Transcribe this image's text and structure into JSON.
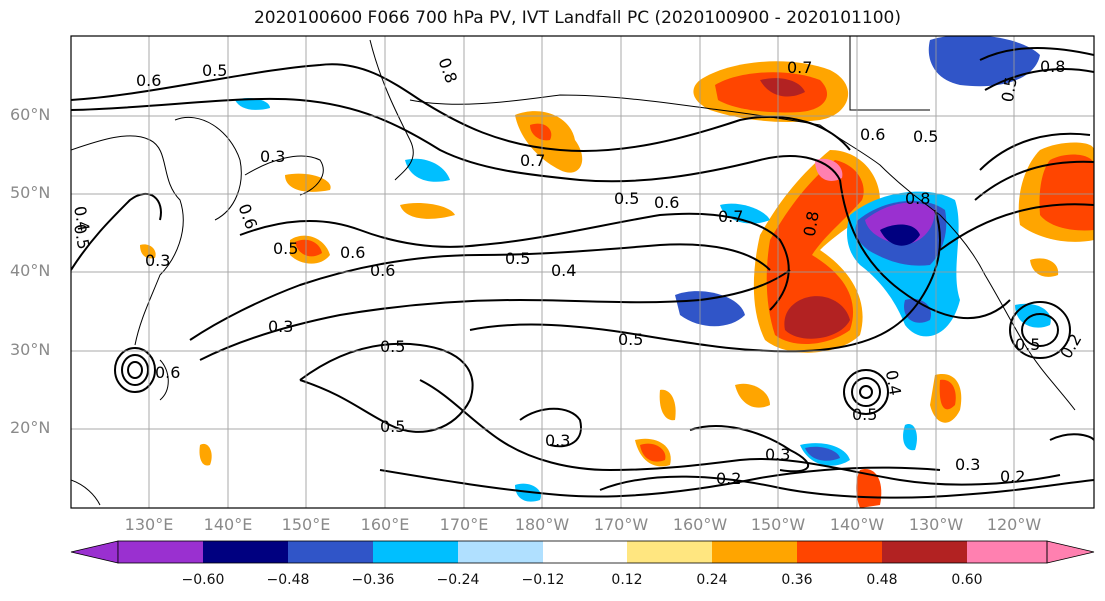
{
  "title": "2020100600 F066 700 hPa PV, IVT Landfall PC (2020100900 - 2020101100)",
  "lat_labels": [
    "60°N",
    "50°N",
    "40°N",
    "30°N",
    "20°N"
  ],
  "lon_labels": [
    "130°E",
    "140°E",
    "150°E",
    "160°E",
    "170°E",
    "180°W",
    "170°W",
    "160°W",
    "150°W",
    "140°W",
    "130°W",
    "120°W"
  ],
  "colorbar": {
    "ticks": [
      "−0.60",
      "−0.48",
      "−0.36",
      "−0.24",
      "−0.12",
      "0.12",
      "0.24",
      "0.36",
      "0.48",
      "0.60"
    ],
    "colors": [
      "#9a30d0",
      "#000080",
      "#3055c8",
      "#00bfff",
      "#b0e0ff",
      "#ffffff",
      "#ffe680",
      "#ffa500",
      "#ff4500",
      "#b22222",
      "#ff80b0"
    ]
  },
  "contour_labels": [
    "0.6",
    "0.5",
    "0.8",
    "0.3",
    "0.7",
    "0.5",
    "0.6",
    "0.7",
    "0.5",
    "0.6",
    "0.4",
    "0.5",
    "0.3",
    "0.5",
    "0.5",
    "0.5",
    "0.5",
    "0.3",
    "0.3",
    "0.2",
    "0.3",
    "0.2",
    "0.8",
    "0.7",
    "0.8",
    "0.5",
    "0.6",
    "0.4",
    "0.5",
    "0.2",
    "0.4",
    "0.5",
    "0.3",
    "0.6",
    "0.8",
    "0.5",
    "0.6",
    "0.6"
  ]
}
